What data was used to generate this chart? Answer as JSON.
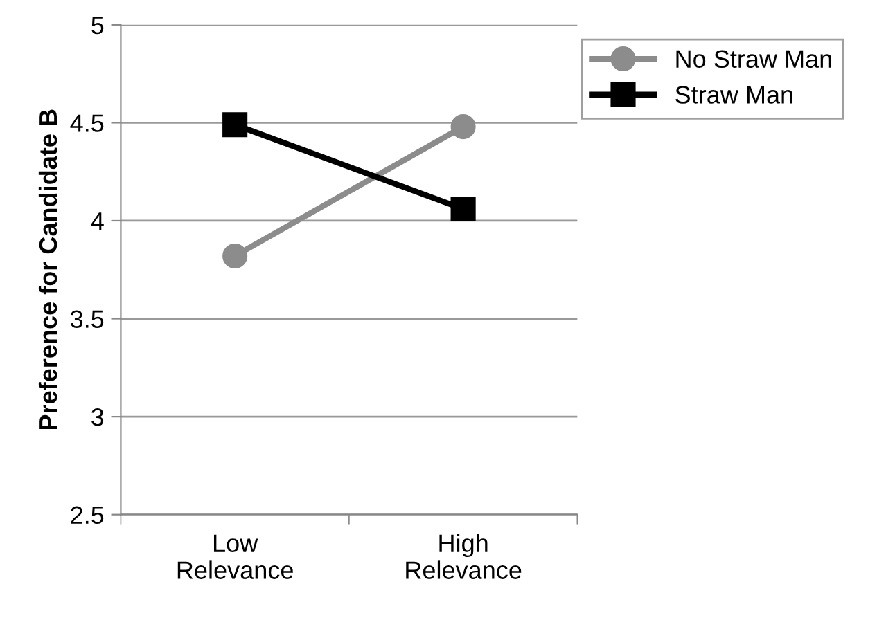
{
  "chart_data": {
    "type": "line",
    "ylabel": "Preference for Candidate B",
    "categories": [
      "Low\nRelevance",
      "High\nRelevance"
    ],
    "series": [
      {
        "name": "No Straw Man",
        "color": "#8c8c8c",
        "marker": "circle",
        "values": [
          3.82,
          4.48
        ]
      },
      {
        "name": "Straw Man",
        "color": "#000000",
        "marker": "square",
        "values": [
          4.49,
          4.06
        ]
      }
    ],
    "ylim": [
      2.5,
      5
    ],
    "yticks": [
      2.5,
      3,
      3.5,
      4,
      4.5,
      5
    ],
    "grid": "y",
    "legend": "right"
  }
}
